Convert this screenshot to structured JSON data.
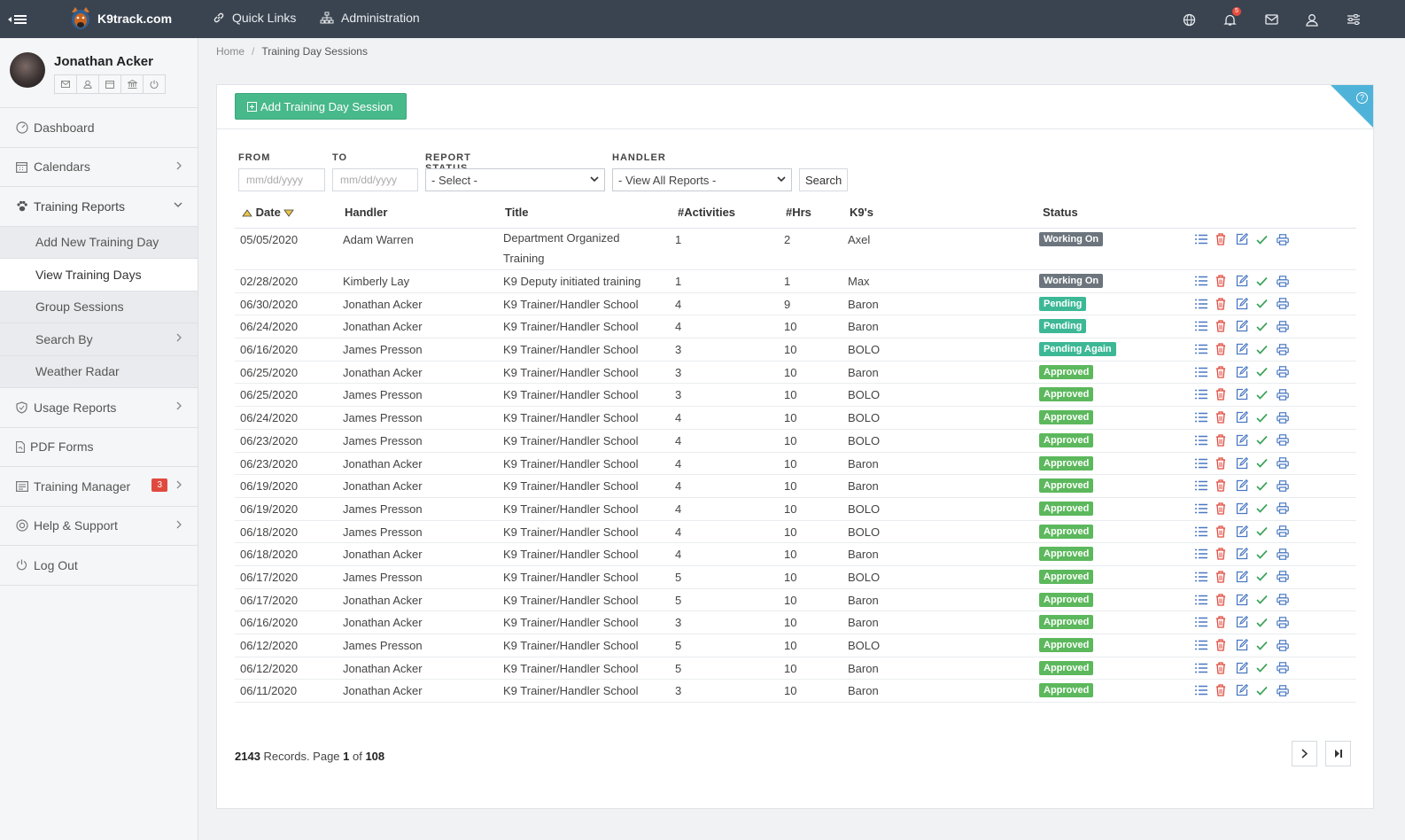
{
  "brand": {
    "name": "K9track.com"
  },
  "topnav": {
    "quick_links": "Quick Links",
    "administration": "Administration",
    "notifications_count": "5"
  },
  "user": {
    "name": "Jonathan Acker"
  },
  "sidebar": {
    "dashboard": "Dashboard",
    "calendars": "Calendars",
    "training_reports": "Training Reports",
    "sub": {
      "add_new": "Add New Training Day",
      "view_days": "View Training Days",
      "group_sessions": "Group Sessions",
      "search_by": "Search By",
      "weather_radar": "Weather Radar"
    },
    "usage_reports": "Usage Reports",
    "pdf_forms": "PDF Forms",
    "training_manager": "Training Manager",
    "training_manager_count": "3",
    "help_support": "Help & Support",
    "log_out": "Log Out"
  },
  "breadcrumb": {
    "home": "Home",
    "sep": "/",
    "current": "Training Day Sessions"
  },
  "toolbar": {
    "add_label": "Add Training Day Session"
  },
  "filters": {
    "from_label": "FROM",
    "to_label": "TO",
    "status_label": "REPORT STATUS",
    "handler_label": "HANDLER",
    "from_placeholder": "mm/dd/yyyy",
    "to_placeholder": "mm/dd/yyyy",
    "status_value": "- Select -",
    "handler_value": "- View All Reports -",
    "search_label": "Search"
  },
  "table": {
    "headers": {
      "date": "Date",
      "handler": "Handler",
      "title": "Title",
      "activities": "#Activities",
      "hrs": "#Hrs",
      "k9": "K9's",
      "status": "Status"
    },
    "rows": [
      {
        "date": "05/05/2020",
        "handler": "Adam Warren",
        "title": "Department Organized",
        "title2": "Training",
        "activities": "1",
        "hrs": "2",
        "k9": "Axel",
        "status": "Working On"
      },
      {
        "date": "02/28/2020",
        "handler": "Kimberly Lay",
        "title": "K9 Deputy initiated training",
        "activities": "1",
        "hrs": "1",
        "k9": "Max",
        "status": "Working On"
      },
      {
        "date": "06/30/2020",
        "handler": "Jonathan Acker",
        "title": "K9 Trainer/Handler School",
        "activities": "4",
        "hrs": "9",
        "k9": "Baron",
        "status": "Pending"
      },
      {
        "date": "06/24/2020",
        "handler": "Jonathan Acker",
        "title": "K9 Trainer/Handler School",
        "activities": "4",
        "hrs": "10",
        "k9": "Baron",
        "status": "Pending"
      },
      {
        "date": "06/16/2020",
        "handler": "James Presson",
        "title": "K9 Trainer/Handler School",
        "activities": "3",
        "hrs": "10",
        "k9": "BOLO",
        "status": "Pending Again"
      },
      {
        "date": "06/25/2020",
        "handler": "Jonathan Acker",
        "title": "K9 Trainer/Handler School",
        "activities": "3",
        "hrs": "10",
        "k9": "Baron",
        "status": "Approved"
      },
      {
        "date": "06/25/2020",
        "handler": "James Presson",
        "title": "K9 Trainer/Handler School",
        "activities": "3",
        "hrs": "10",
        "k9": "BOLO",
        "status": "Approved"
      },
      {
        "date": "06/24/2020",
        "handler": "James Presson",
        "title": "K9 Trainer/Handler School",
        "activities": "4",
        "hrs": "10",
        "k9": "BOLO",
        "status": "Approved"
      },
      {
        "date": "06/23/2020",
        "handler": "James Presson",
        "title": "K9 Trainer/Handler School",
        "activities": "4",
        "hrs": "10",
        "k9": "BOLO",
        "status": "Approved"
      },
      {
        "date": "06/23/2020",
        "handler": "Jonathan Acker",
        "title": "K9 Trainer/Handler School",
        "activities": "4",
        "hrs": "10",
        "k9": "Baron",
        "status": "Approved"
      },
      {
        "date": "06/19/2020",
        "handler": "Jonathan Acker",
        "title": "K9 Trainer/Handler School",
        "activities": "4",
        "hrs": "10",
        "k9": "Baron",
        "status": "Approved"
      },
      {
        "date": "06/19/2020",
        "handler": "James Presson",
        "title": "K9 Trainer/Handler School",
        "activities": "4",
        "hrs": "10",
        "k9": "BOLO",
        "status": "Approved"
      },
      {
        "date": "06/18/2020",
        "handler": "James Presson",
        "title": "K9 Trainer/Handler School",
        "activities": "4",
        "hrs": "10",
        "k9": "BOLO",
        "status": "Approved"
      },
      {
        "date": "06/18/2020",
        "handler": "Jonathan Acker",
        "title": "K9 Trainer/Handler School",
        "activities": "4",
        "hrs": "10",
        "k9": "Baron",
        "status": "Approved"
      },
      {
        "date": "06/17/2020",
        "handler": "James Presson",
        "title": "K9 Trainer/Handler School",
        "activities": "5",
        "hrs": "10",
        "k9": "BOLO",
        "status": "Approved"
      },
      {
        "date": "06/17/2020",
        "handler": "Jonathan Acker",
        "title": "K9 Trainer/Handler School",
        "activities": "5",
        "hrs": "10",
        "k9": "Baron",
        "status": "Approved"
      },
      {
        "date": "06/16/2020",
        "handler": "Jonathan Acker",
        "title": "K9 Trainer/Handler School",
        "activities": "3",
        "hrs": "10",
        "k9": "Baron",
        "status": "Approved"
      },
      {
        "date": "06/12/2020",
        "handler": "James Presson",
        "title": "K9 Trainer/Handler School",
        "activities": "5",
        "hrs": "10",
        "k9": "BOLO",
        "status": "Approved"
      },
      {
        "date": "06/12/2020",
        "handler": "Jonathan Acker",
        "title": "K9 Trainer/Handler School",
        "activities": "5",
        "hrs": "10",
        "k9": "Baron",
        "status": "Approved"
      },
      {
        "date": "06/11/2020",
        "handler": "Jonathan Acker",
        "title": "K9 Trainer/Handler School",
        "activities": "3",
        "hrs": "10",
        "k9": "Baron",
        "status": "Approved"
      }
    ]
  },
  "pager": {
    "records": "2143",
    "records_text": " Records. Page ",
    "page": "1",
    "of_text": " of ",
    "total_pages": "108"
  },
  "colors": {
    "topbar": "#3a4451",
    "accent_green": "#48b98a",
    "help_blue": "#4fb3d9",
    "approved": "#5cb85c",
    "pending": "#3db896",
    "working": "#6c757d",
    "delete_red": "#e04a3e"
  },
  "icons": {
    "list": "list-icon",
    "delete": "trash-icon",
    "edit": "edit-icon",
    "approve": "check-icon",
    "print": "print-icon"
  }
}
